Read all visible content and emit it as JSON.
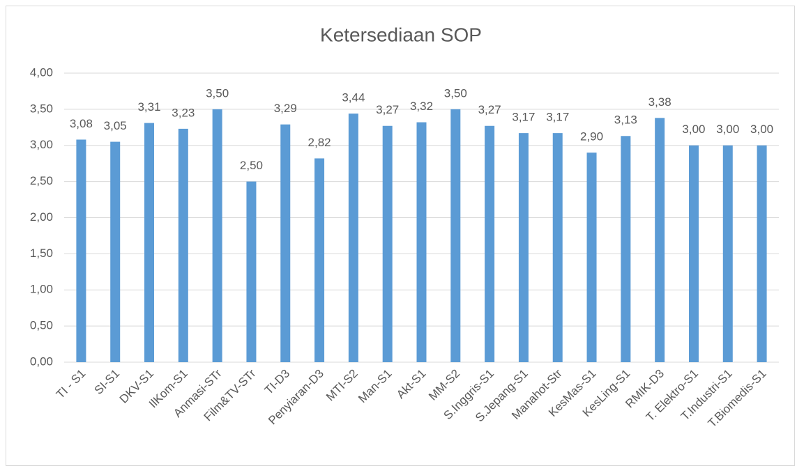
{
  "chart_data": {
    "type": "bar",
    "title": "Ketersediaan SOP",
    "categories": [
      "TI - S1",
      "SI-S1",
      "DKV-S1",
      "IlKom-S1",
      "Anmasi-STr",
      "Film&TV-STr",
      "TI-D3",
      "Penyiaran-D3",
      "MTI-S2",
      "Man-S1",
      "Akt-S1",
      "MM-S2",
      "S.Inggris-S1",
      "S.Jepang-S1",
      "Manahot-Str",
      "KesMas-S1",
      "KesLing-S1",
      "RMIK-D3",
      "T. Elektro-S1",
      "T.Industri-S1",
      "T.Biomedis-S1"
    ],
    "values": [
      3.08,
      3.05,
      3.31,
      3.23,
      3.5,
      2.5,
      3.29,
      2.82,
      3.44,
      3.27,
      3.32,
      3.5,
      3.27,
      3.17,
      3.17,
      2.9,
      3.13,
      3.38,
      3.0,
      3.0,
      3.0
    ],
    "value_labels": [
      "3,08",
      "3,05",
      "3,31",
      "3,23",
      "3,50",
      "2,50",
      "3,29",
      "2,82",
      "3,44",
      "3,27",
      "3,32",
      "3,50",
      "3,27",
      "3,17",
      "3,17",
      "2,90",
      "3,13",
      "3,38",
      "3,00",
      "3,00",
      "3,00"
    ],
    "color": "#5b9bd5",
    "ylim": [
      0,
      4
    ],
    "yticks": [
      {
        "value": 0,
        "label": "0,00"
      },
      {
        "value": 0.5,
        "label": "0,50"
      },
      {
        "value": 1,
        "label": "1,00"
      },
      {
        "value": 1.5,
        "label": "1,50"
      },
      {
        "value": 2,
        "label": "2,00"
      },
      {
        "value": 2.5,
        "label": "2,50"
      },
      {
        "value": 3,
        "label": "3,00"
      },
      {
        "value": 3.5,
        "label": "3,50"
      },
      {
        "value": 4,
        "label": "4,00"
      }
    ],
    "grid": true
  }
}
